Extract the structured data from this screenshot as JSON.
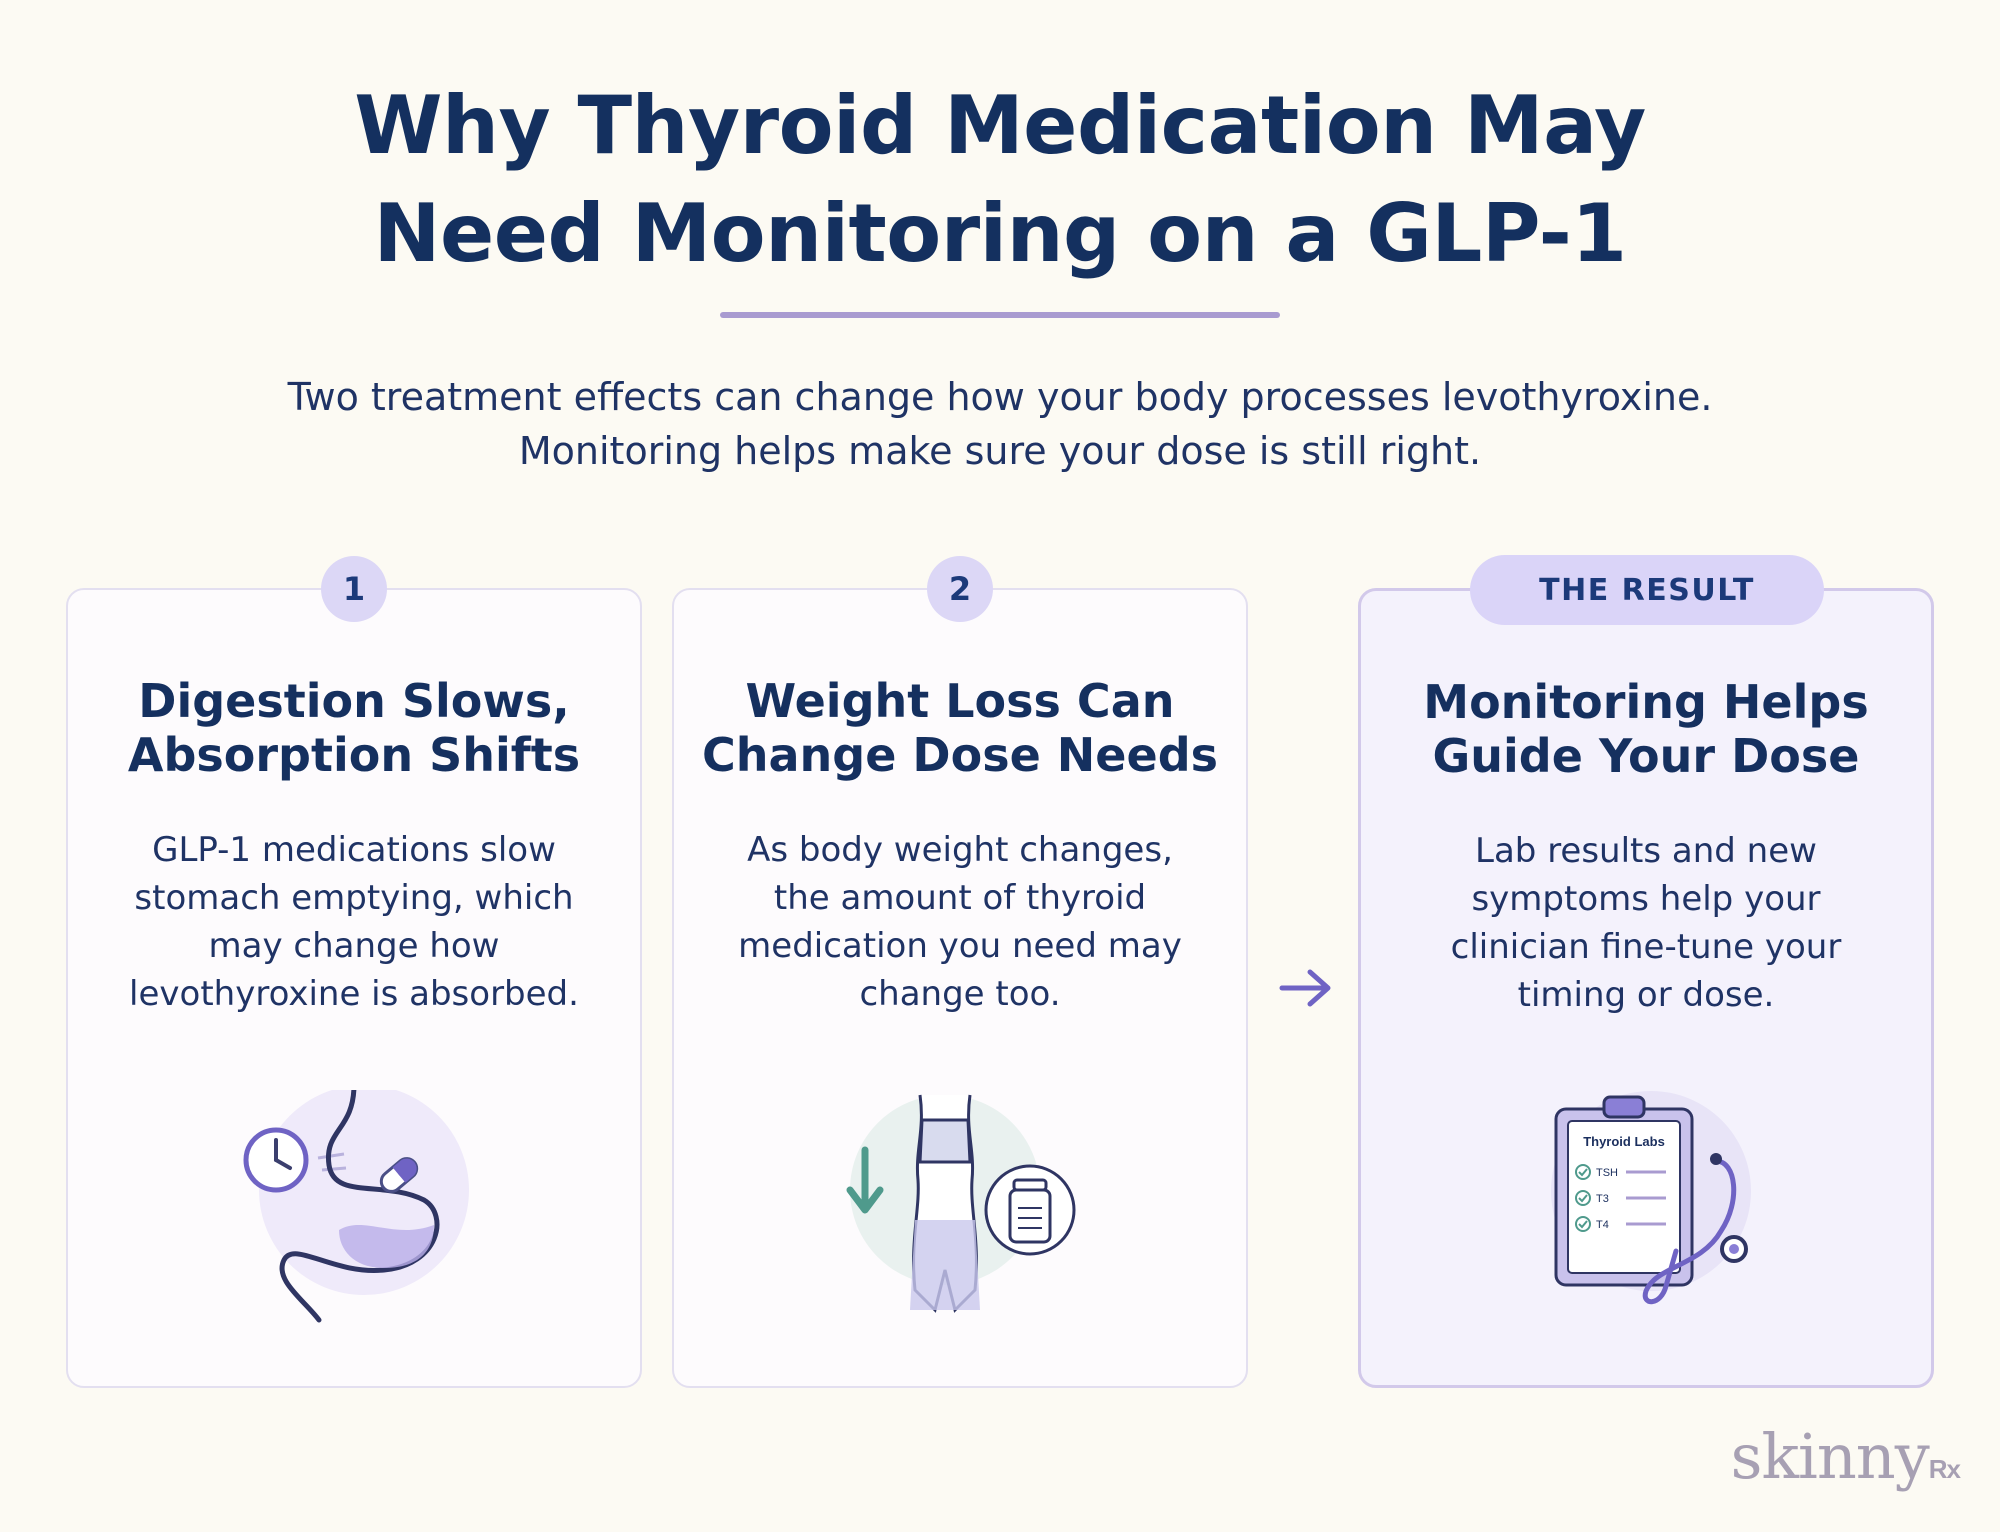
{
  "header": {
    "title_line1": "Why Thyroid Medication May",
    "title_line2": "Need Monitoring on a GLP-1",
    "intro_line1": "Two treatment effects can change how your body processes levothyroxine.",
    "intro_line2": "Monitoring helps make sure your dose is still right."
  },
  "cards": [
    {
      "badge": "1",
      "title": [
        "Digestion Slows,",
        "Absorption Shifts"
      ],
      "body": [
        "GLP-1 medications slow",
        "stomach emptying, which",
        "may change how",
        "levothyroxine is absorbed."
      ],
      "icon": "stomach-clock-pill-icon"
    },
    {
      "badge": "2",
      "title": [
        "Weight Loss Can",
        "Change Dose Needs"
      ],
      "body": [
        "As body weight changes,",
        "the amount of thyroid",
        "medication you need may",
        "change too."
      ],
      "icon": "body-weight-bottle-icon"
    },
    {
      "badge": "THE RESULT",
      "title": [
        "Monitoring Helps",
        "Guide Your Dose"
      ],
      "body": [
        "Lab results and new",
        "symptoms help your",
        "clinician fine-tune your",
        "timing or dose."
      ],
      "icon": "clipboard-stethoscope-icon",
      "clipboard": {
        "heading": "Thyroid Labs",
        "items": [
          "TSH",
          "T3",
          "T4"
        ]
      }
    }
  ],
  "connector_icon": "arrow-right-icon",
  "logo": {
    "text": "skinny",
    "suffix": "Rx"
  },
  "colors": {
    "background": "#fcfaf3",
    "title": "#14305f",
    "accent_purple": "#7a6fd0",
    "badge_bg": "#dcd7f6",
    "teal": "#4f9a8c"
  }
}
